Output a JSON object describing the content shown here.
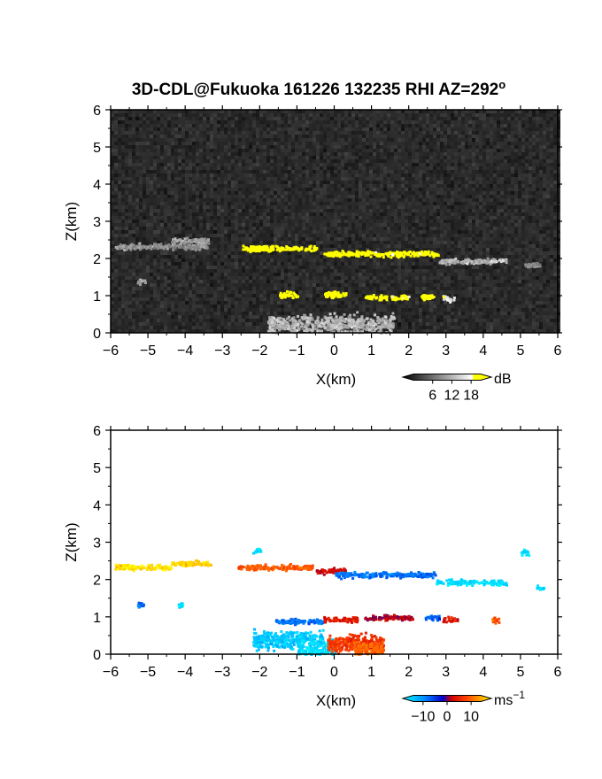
{
  "title": "3D-CDL@Fukuoka 161226 132235 RHI AZ=292",
  "title_degree": "o",
  "chart_data": [
    {
      "type": "heatmap",
      "panel": "top",
      "quantity": "backscatter intensity",
      "xlabel": "X(km)",
      "ylabel": "Z(km)",
      "xlim": [
        -6,
        6
      ],
      "ylim": [
        0,
        6
      ],
      "xticks": [
        -6,
        -5,
        -4,
        -3,
        -2,
        -1,
        0,
        1,
        2,
        3,
        4,
        5,
        6
      ],
      "yticks": [
        0,
        1,
        2,
        3,
        4,
        5,
        6
      ],
      "colormap": "grayscale to yellow",
      "background_color": "#2a2a2a",
      "highlight_color": "#ffff00",
      "colorbar": {
        "label": "dB",
        "ticks": [
          6,
          12,
          18
        ],
        "range": [
          0,
          21
        ]
      },
      "layers": [
        {
          "x": [
            -5.9,
            -3.4
          ],
          "z": 2.35,
          "intensity": 10
        },
        {
          "x": [
            -4.4,
            -3.4
          ],
          "z": 2.5,
          "intensity": 11
        },
        {
          "x": [
            -2.5,
            -0.5
          ],
          "z": 2.3,
          "intensity": 20
        },
        {
          "x": [
            -0.3,
            2.8
          ],
          "z": 2.15,
          "intensity": 20
        },
        {
          "x": [
            2.8,
            4.6
          ],
          "z": 1.95,
          "intensity": 12
        },
        {
          "x": [
            5.1,
            5.5
          ],
          "z": 1.85,
          "intensity": 9
        },
        {
          "x": [
            -1.5,
            -1.0
          ],
          "z": 1.05,
          "intensity": 20
        },
        {
          "x": [
            -0.3,
            0.3
          ],
          "z": 1.05,
          "intensity": 20
        },
        {
          "x": [
            0.8,
            1.4
          ],
          "z": 0.98,
          "intensity": 19
        },
        {
          "x": [
            1.5,
            2.0
          ],
          "z": 0.98,
          "intensity": 19
        },
        {
          "x": [
            2.3,
            2.7
          ],
          "z": 1.0,
          "intensity": 19
        },
        {
          "x": [
            2.9,
            3.2
          ],
          "z": 0.95,
          "intensity": 15
        },
        {
          "x": [
            -5.3,
            -5.1
          ],
          "z": 1.4,
          "intensity": 11
        },
        {
          "x": [
            -1.8,
            1.6
          ],
          "z": 0.25,
          "intensity": 12
        }
      ]
    },
    {
      "type": "heatmap",
      "panel": "bottom",
      "quantity": "radial velocity",
      "xlabel": "X(km)",
      "ylabel": "Z(km)",
      "xlim": [
        -6,
        6
      ],
      "ylim": [
        0,
        6
      ],
      "xticks": [
        -6,
        -5,
        -4,
        -3,
        -2,
        -1,
        0,
        1,
        2,
        3,
        4,
        5,
        6
      ],
      "yticks": [
        0,
        1,
        2,
        3,
        4,
        5,
        6
      ],
      "colormap": "cyan-blue-red-orange-yellow",
      "colorbar": {
        "label": "ms",
        "label_exponent": "−1",
        "ticks": [
          -10,
          0,
          10
        ],
        "tick_labels": [
          "−10",
          "0",
          "10"
        ],
        "range": [
          -14,
          14
        ]
      },
      "layers": [
        {
          "x": [
            -5.9,
            -4.4
          ],
          "z": 2.35,
          "velocity": 13
        },
        {
          "x": [
            -4.4,
            -3.3
          ],
          "z": 2.45,
          "velocity": 12
        },
        {
          "x": [
            -2.6,
            -0.6
          ],
          "z": 2.35,
          "velocity": 7
        },
        {
          "x": [
            -0.5,
            0.3
          ],
          "z": 2.25,
          "velocity": 2
        },
        {
          "x": [
            0.0,
            2.7
          ],
          "z": 2.15,
          "velocity": -6
        },
        {
          "x": [
            2.7,
            4.6
          ],
          "z": 1.95,
          "velocity": -12
        },
        {
          "x": [
            5.0,
            5.2
          ],
          "z": 2.75,
          "velocity": -12
        },
        {
          "x": [
            5.4,
            5.6
          ],
          "z": 1.8,
          "velocity": -12
        },
        {
          "x": [
            -2.2,
            -2.0
          ],
          "z": 2.8,
          "velocity": -12
        },
        {
          "x": [
            -5.3,
            -5.1
          ],
          "z": 1.35,
          "velocity": -6
        },
        {
          "x": [
            -4.2,
            -4.1
          ],
          "z": 1.35,
          "velocity": -12
        },
        {
          "x": [
            -1.6,
            -0.3
          ],
          "z": 0.9,
          "velocity": -6
        },
        {
          "x": [
            -0.3,
            0.6
          ],
          "z": 0.95,
          "velocity": 3
        },
        {
          "x": [
            0.8,
            2.1
          ],
          "z": 1.0,
          "velocity": 1
        },
        {
          "x": [
            2.4,
            2.8
          ],
          "z": 1.0,
          "velocity": -5
        },
        {
          "x": [
            2.9,
            3.3
          ],
          "z": 0.95,
          "velocity": 3
        },
        {
          "x": [
            4.2,
            4.4
          ],
          "z": 0.95,
          "velocity": 7
        },
        {
          "x": [
            -2.2,
            -0.3
          ],
          "z": 0.4,
          "velocity": -11
        },
        {
          "x": [
            -1.0,
            0.0
          ],
          "z": 0.15,
          "velocity": -12
        },
        {
          "x": [
            -0.2,
            1.3
          ],
          "z": 0.3,
          "velocity": 5
        },
        {
          "x": [
            0.5,
            1.3
          ],
          "z": 0.1,
          "velocity": 8
        }
      ]
    }
  ]
}
